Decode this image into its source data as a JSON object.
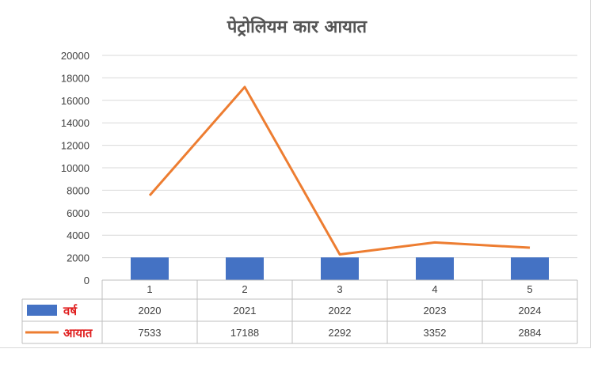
{
  "chart_data": {
    "type": "bar",
    "title": "पेट्रोलियम कार आयात",
    "categories": [
      "1",
      "2",
      "3",
      "4",
      "5"
    ],
    "ylim": [
      0,
      20000
    ],
    "yticks": [
      0,
      2000,
      4000,
      6000,
      8000,
      10000,
      12000,
      14000,
      16000,
      18000,
      20000
    ],
    "grid": true,
    "legend": "bottom-table",
    "series": [
      {
        "name": "वर्ष",
        "kind": "bar",
        "color": "#4472c4",
        "values": [
          2020,
          2021,
          2022,
          2023,
          2024
        ]
      },
      {
        "name": "आयात",
        "kind": "line",
        "color": "#ed7d31",
        "values": [
          7533,
          17188,
          2292,
          3352,
          2884
        ]
      }
    ]
  }
}
